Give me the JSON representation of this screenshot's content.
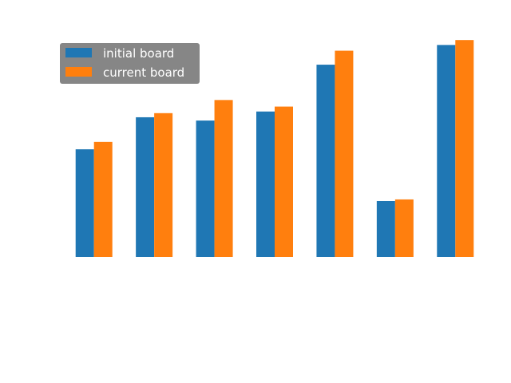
{
  "chart_data": {
    "type": "bar",
    "title": "",
    "xlabel": "",
    "ylabel": "",
    "categories": [
      "",
      "",
      "",
      "",
      "",
      "",
      ""
    ],
    "series": [
      {
        "name": "initial board",
        "color": "#1f77b4",
        "values": [
          131,
          170,
          166,
          177,
          234,
          68,
          258
        ]
      },
      {
        "name": "current board",
        "color": "#ff7f0e",
        "values": [
          140,
          175,
          191,
          183,
          251,
          70,
          264
        ]
      }
    ],
    "ylim": [
      0,
      270
    ],
    "grid": false,
    "axes_visible": false,
    "legend": {
      "placement": "top-left",
      "background": "#808080"
    }
  }
}
